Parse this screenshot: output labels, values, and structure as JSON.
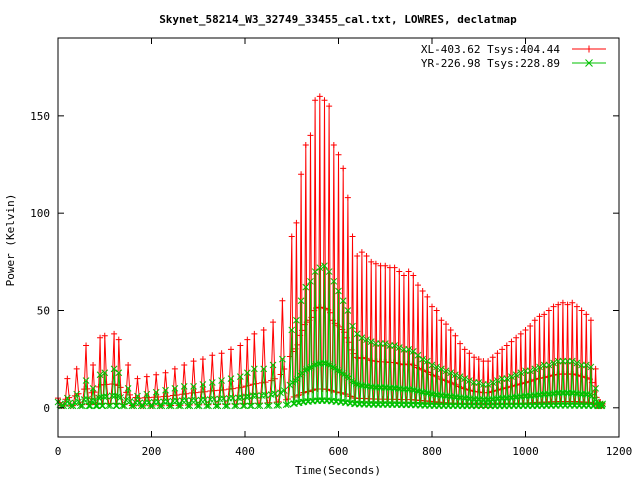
{
  "chart_data": {
    "type": "line",
    "title": "Skynet_58214_W3_32749_33455_cal.txt, LOWRES, declatmap",
    "xlabel": "Time(Seconds)",
    "ylabel": "Power (Kelvin)",
    "xlim": [
      0,
      1200
    ],
    "ylim": [
      -15,
      190
    ],
    "xticks": [
      0,
      200,
      400,
      600,
      800,
      1000,
      1200
    ],
    "yticks": [
      0,
      50,
      100,
      150
    ],
    "grid": false,
    "legend_position": "top-right",
    "series": [
      {
        "name": "XL-403.62 Tsys:404.44",
        "color": "#ff0000",
        "marker": "plus",
        "peaks": [
          [
            0,
            5
          ],
          [
            20,
            15
          ],
          [
            40,
            20
          ],
          [
            60,
            32
          ],
          [
            75,
            22
          ],
          [
            90,
            36
          ],
          [
            100,
            37
          ],
          [
            120,
            38
          ],
          [
            130,
            35
          ],
          [
            150,
            22
          ],
          [
            170,
            15
          ],
          [
            190,
            16
          ],
          [
            210,
            17
          ],
          [
            230,
            18
          ],
          [
            250,
            20
          ],
          [
            270,
            22
          ],
          [
            290,
            24
          ],
          [
            310,
            25
          ],
          [
            330,
            27
          ],
          [
            350,
            28
          ],
          [
            370,
            30
          ],
          [
            390,
            32
          ],
          [
            405,
            35
          ],
          [
            420,
            38
          ],
          [
            440,
            40
          ],
          [
            460,
            44
          ],
          [
            480,
            55
          ],
          [
            500,
            88
          ],
          [
            510,
            95
          ],
          [
            520,
            120
          ],
          [
            530,
            135
          ],
          [
            540,
            140
          ],
          [
            550,
            158
          ],
          [
            560,
            160
          ],
          [
            570,
            158
          ],
          [
            580,
            155
          ],
          [
            590,
            135
          ],
          [
            600,
            130
          ],
          [
            610,
            123
          ],
          [
            620,
            108
          ],
          [
            630,
            88
          ],
          [
            640,
            78
          ],
          [
            650,
            80
          ],
          [
            660,
            78
          ],
          [
            670,
            75
          ],
          [
            680,
            74
          ],
          [
            690,
            73
          ],
          [
            700,
            73
          ],
          [
            710,
            72
          ],
          [
            720,
            72
          ],
          [
            730,
            70
          ],
          [
            740,
            68
          ],
          [
            750,
            70
          ],
          [
            760,
            68
          ],
          [
            770,
            63
          ],
          [
            780,
            60
          ],
          [
            790,
            57
          ],
          [
            800,
            52
          ],
          [
            810,
            50
          ],
          [
            820,
            45
          ],
          [
            830,
            43
          ],
          [
            840,
            40
          ],
          [
            850,
            37
          ],
          [
            860,
            33
          ],
          [
            870,
            30
          ],
          [
            880,
            28
          ],
          [
            890,
            26
          ],
          [
            900,
            25
          ],
          [
            910,
            24
          ],
          [
            920,
            24
          ],
          [
            930,
            26
          ],
          [
            940,
            28
          ],
          [
            950,
            30
          ],
          [
            960,
            32
          ],
          [
            970,
            34
          ],
          [
            980,
            36
          ],
          [
            990,
            38
          ],
          [
            1000,
            40
          ],
          [
            1010,
            42
          ],
          [
            1020,
            45
          ],
          [
            1030,
            47
          ],
          [
            1040,
            48
          ],
          [
            1050,
            50
          ],
          [
            1060,
            52
          ],
          [
            1070,
            53
          ],
          [
            1080,
            54
          ],
          [
            1090,
            53
          ],
          [
            1100,
            54
          ],
          [
            1110,
            52
          ],
          [
            1120,
            50
          ],
          [
            1130,
            48
          ],
          [
            1140,
            45
          ],
          [
            1150,
            20
          ],
          [
            1160,
            3
          ],
          [
            1165,
            2
          ]
        ]
      },
      {
        "name": "YR-226.98 Tsys:228.89",
        "color": "#00c000",
        "marker": "cross",
        "peaks": [
          [
            0,
            3
          ],
          [
            20,
            5
          ],
          [
            40,
            7
          ],
          [
            60,
            14
          ],
          [
            75,
            10
          ],
          [
            90,
            17
          ],
          [
            100,
            18
          ],
          [
            120,
            20
          ],
          [
            130,
            18
          ],
          [
            150,
            10
          ],
          [
            170,
            6
          ],
          [
            190,
            7
          ],
          [
            210,
            8
          ],
          [
            230,
            9
          ],
          [
            250,
            10
          ],
          [
            270,
            11
          ],
          [
            290,
            11
          ],
          [
            310,
            12
          ],
          [
            330,
            13
          ],
          [
            350,
            14
          ],
          [
            370,
            15
          ],
          [
            390,
            16
          ],
          [
            405,
            18
          ],
          [
            420,
            20
          ],
          [
            440,
            20
          ],
          [
            460,
            22
          ],
          [
            480,
            25
          ],
          [
            500,
            40
          ],
          [
            510,
            45
          ],
          [
            520,
            55
          ],
          [
            530,
            62
          ],
          [
            540,
            65
          ],
          [
            550,
            70
          ],
          [
            560,
            72
          ],
          [
            570,
            73
          ],
          [
            580,
            70
          ],
          [
            590,
            65
          ],
          [
            600,
            60
          ],
          [
            610,
            55
          ],
          [
            620,
            50
          ],
          [
            630,
            42
          ],
          [
            640,
            38
          ],
          [
            650,
            36
          ],
          [
            660,
            35
          ],
          [
            670,
            34
          ],
          [
            680,
            33
          ],
          [
            690,
            33
          ],
          [
            700,
            33
          ],
          [
            710,
            32
          ],
          [
            720,
            32
          ],
          [
            730,
            31
          ],
          [
            740,
            30
          ],
          [
            750,
            30
          ],
          [
            760,
            29
          ],
          [
            770,
            27
          ],
          [
            780,
            25
          ],
          [
            790,
            24
          ],
          [
            800,
            22
          ],
          [
            810,
            21
          ],
          [
            820,
            20
          ],
          [
            830,
            19
          ],
          [
            840,
            18
          ],
          [
            850,
            17
          ],
          [
            860,
            16
          ],
          [
            870,
            15
          ],
          [
            880,
            14
          ],
          [
            890,
            13
          ],
          [
            900,
            13
          ],
          [
            910,
            12
          ],
          [
            920,
            12
          ],
          [
            930,
            13
          ],
          [
            940,
            14
          ],
          [
            950,
            15
          ],
          [
            960,
            15
          ],
          [
            970,
            16
          ],
          [
            980,
            17
          ],
          [
            990,
            18
          ],
          [
            1000,
            19
          ],
          [
            1010,
            19
          ],
          [
            1020,
            20
          ],
          [
            1030,
            21
          ],
          [
            1040,
            22
          ],
          [
            1050,
            22
          ],
          [
            1060,
            23
          ],
          [
            1070,
            24
          ],
          [
            1080,
            24
          ],
          [
            1090,
            24
          ],
          [
            1100,
            24
          ],
          [
            1110,
            23
          ],
          [
            1120,
            22
          ],
          [
            1130,
            22
          ],
          [
            1140,
            21
          ],
          [
            1150,
            10
          ],
          [
            1160,
            2
          ],
          [
            1165,
            2
          ]
        ]
      }
    ]
  }
}
